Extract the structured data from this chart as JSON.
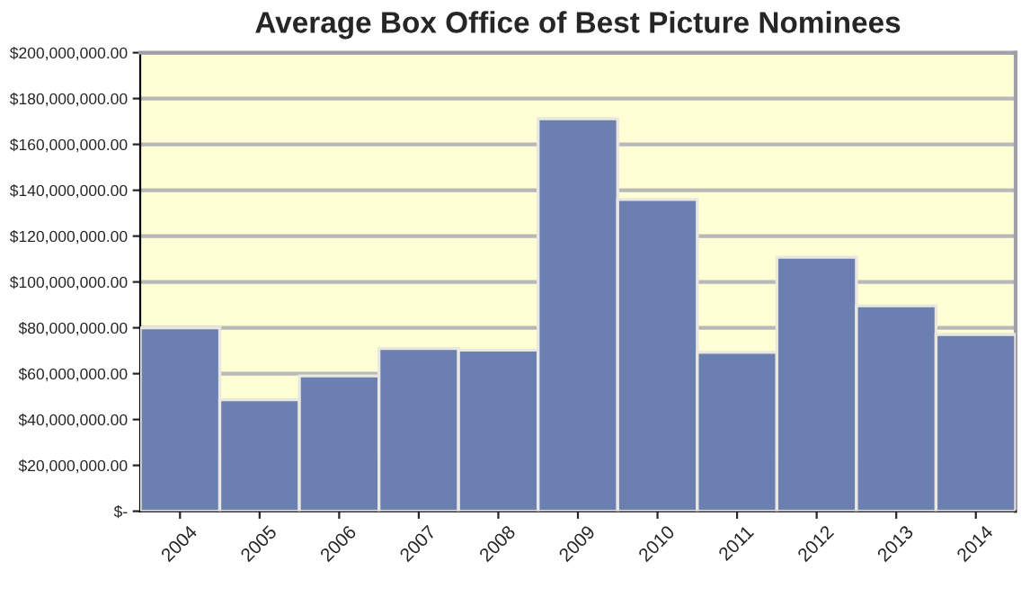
{
  "chart_data": {
    "type": "bar",
    "title": "Average Box Office of Best Picture Nominees",
    "categories": [
      "2004",
      "2005",
      "2006",
      "2007",
      "2008",
      "2009",
      "2010",
      "2011",
      "2012",
      "2013",
      "2014"
    ],
    "values": [
      80000000,
      48600000,
      59000000,
      71000000,
      70300000,
      171200000,
      136000000,
      69300000,
      110800000,
      89600000,
      77100000
    ],
    "color": "#6b7fb0",
    "ylim": [
      0,
      200000000
    ],
    "yticks": [
      {
        "value": 0,
        "label": "$-"
      },
      {
        "value": 20000000,
        "label": "$20,000,000.00"
      },
      {
        "value": 40000000,
        "label": "$40,000,000.00"
      },
      {
        "value": 60000000,
        "label": "$60,000,000.00"
      },
      {
        "value": 80000000,
        "label": "$80,000,000.00"
      },
      {
        "value": 100000000,
        "label": "$100,000,000.00"
      },
      {
        "value": 120000000,
        "label": "$120,000,000.00"
      },
      {
        "value": 140000000,
        "label": "$140,000,000.00"
      },
      {
        "value": 160000000,
        "label": "$160,000,000.00"
      },
      {
        "value": 180000000,
        "label": "$180,000,000.00"
      },
      {
        "value": 200000000,
        "label": "$200,000,000.00"
      }
    ],
    "grid": "y"
  }
}
